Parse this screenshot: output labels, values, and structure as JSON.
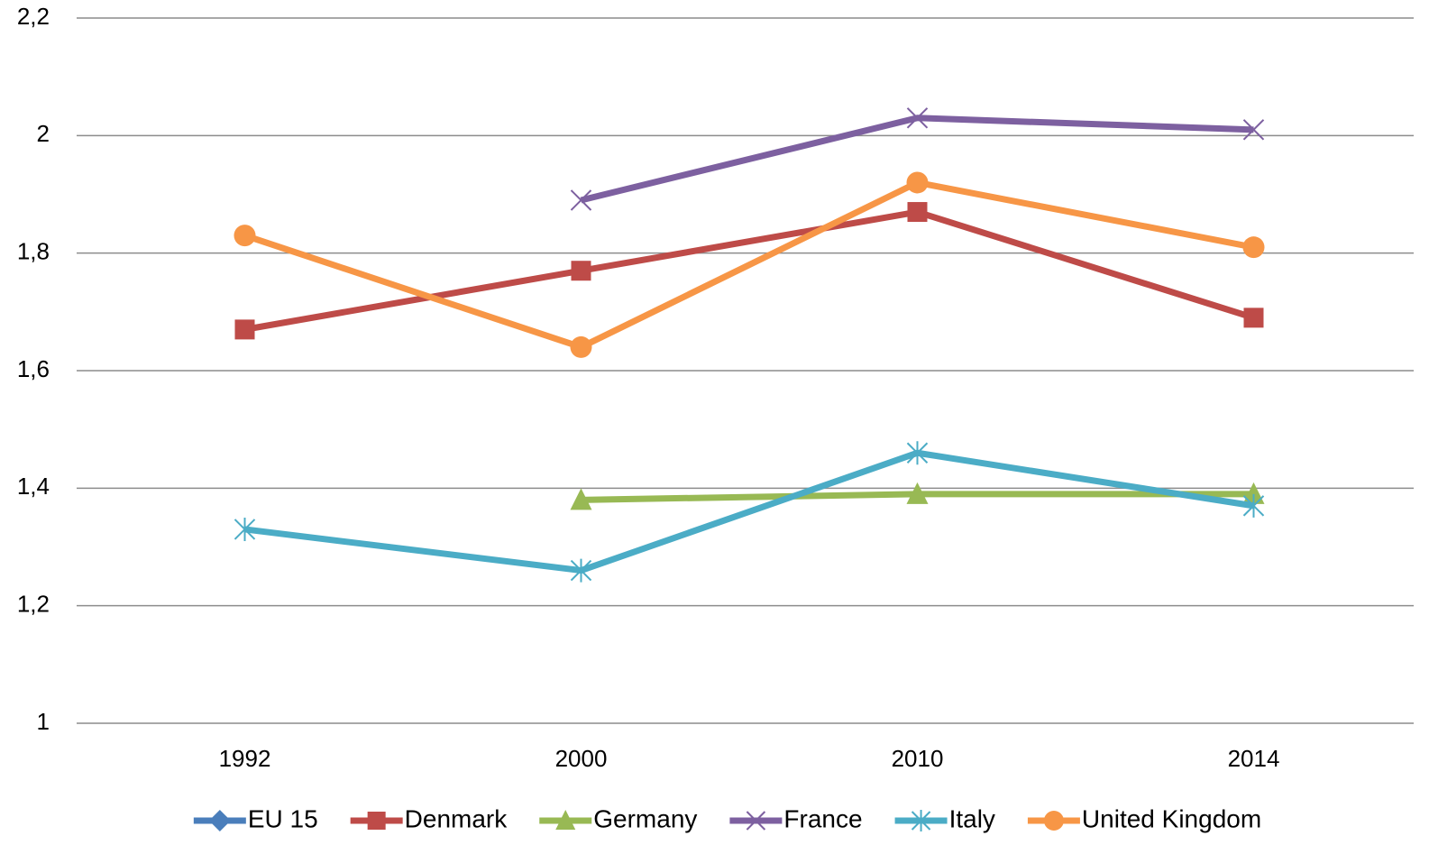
{
  "chart_data": {
    "type": "line",
    "categories": [
      "1992",
      "2000",
      "2010",
      "2014"
    ],
    "ylim": [
      1,
      2.2
    ],
    "yticks": [
      1,
      {
        "value": 1.2,
        "label": "1,2"
      },
      {
        "value": 1.4,
        "label": "1,4"
      },
      {
        "value": 1.6,
        "label": "1,6"
      },
      {
        "value": 1.8,
        "label": "1,8"
      },
      2,
      {
        "value": 2.2,
        "label": "2,2"
      }
    ],
    "grid": true,
    "legend": "bottom",
    "series": [
      {
        "name": "EU 15",
        "color": "#4a7ebb",
        "marker": "diamond",
        "values": [
          null,
          null,
          null,
          null
        ]
      },
      {
        "name": "Denmark",
        "color": "#be4b48",
        "marker": "square",
        "values": [
          1.67,
          1.77,
          1.87,
          1.69
        ]
      },
      {
        "name": "Germany",
        "color": "#98b954",
        "marker": "triangle",
        "values": [
          null,
          1.38,
          1.39,
          1.39
        ]
      },
      {
        "name": "France",
        "color": "#7d60a0",
        "marker": "x",
        "values": [
          null,
          1.89,
          2.03,
          2.01
        ]
      },
      {
        "name": "Italy",
        "color": "#4bacc6",
        "marker": "star",
        "values": [
          1.33,
          1.26,
          1.46,
          1.37
        ]
      },
      {
        "name": "United Kingdom",
        "color": "#f79646",
        "marker": "circle",
        "values": [
          1.83,
          1.64,
          1.92,
          1.81
        ]
      }
    ]
  }
}
